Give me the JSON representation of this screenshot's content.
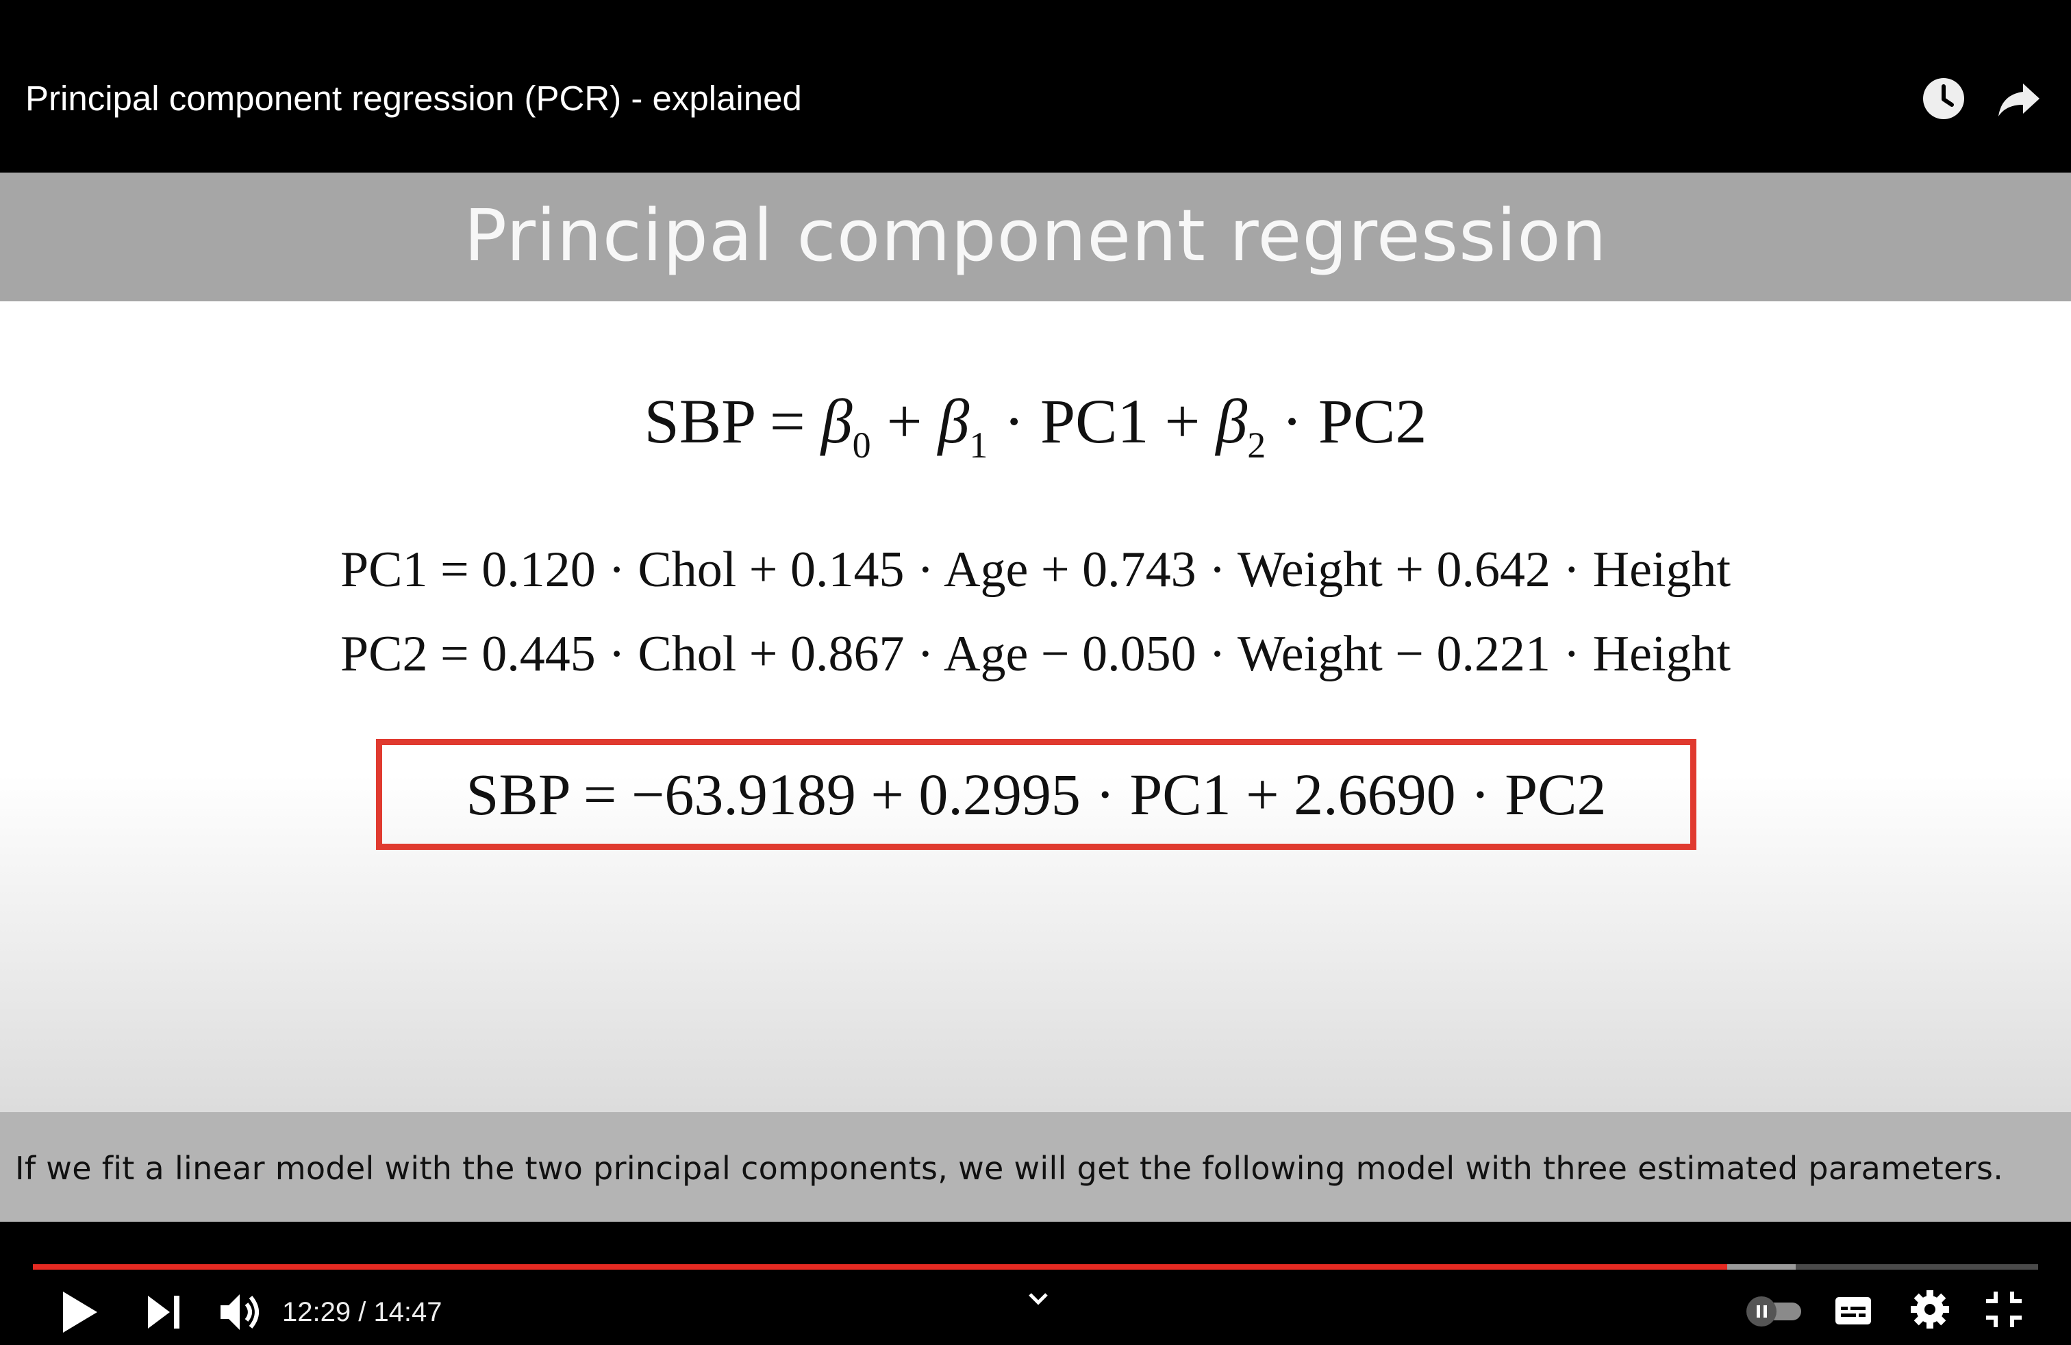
{
  "video": {
    "title": "Principal component regression (PCR) - explained",
    "watch_later_icon": "clock-icon",
    "share_icon": "share-arrow-icon"
  },
  "slide": {
    "title": "Principal component regression",
    "eq1": {
      "left": "SBP = ",
      "b0": "β",
      "s0": "0",
      "plus1": " + ",
      "b1": "β",
      "s1": "1",
      "mid1": " · PC1 + ",
      "b2": "β",
      "s2": "2",
      "tail": " · PC2"
    },
    "eq2": "PC1 = 0.120 · Chol + 0.145 · Age + 0.743 · Weight + 0.642 · Height",
    "eq3": "PC2 = 0.445 · Chol + 0.867 · Age − 0.050 · Weight − 0.221 · Height",
    "model": "SBP = −63.9189 + 0.2995 · PC1 + 2.6690 · PC2",
    "box_color": "#e03a2f"
  },
  "caption": "If we fit a linear model with the two principal components, we will get the following model with three estimated parameters.",
  "controls": {
    "time": "12:29 / 14:47",
    "progress_played_fraction": 0.845,
    "progress_buffered_fraction": 0.879,
    "played_color": "#e52a22",
    "icons": [
      "play-icon",
      "next-icon",
      "volume-icon",
      "chevron-down-icon",
      "autoplay-toggle-icon",
      "subtitles-icon",
      "settings-gear-icon",
      "exit-fullscreen-icon"
    ]
  }
}
